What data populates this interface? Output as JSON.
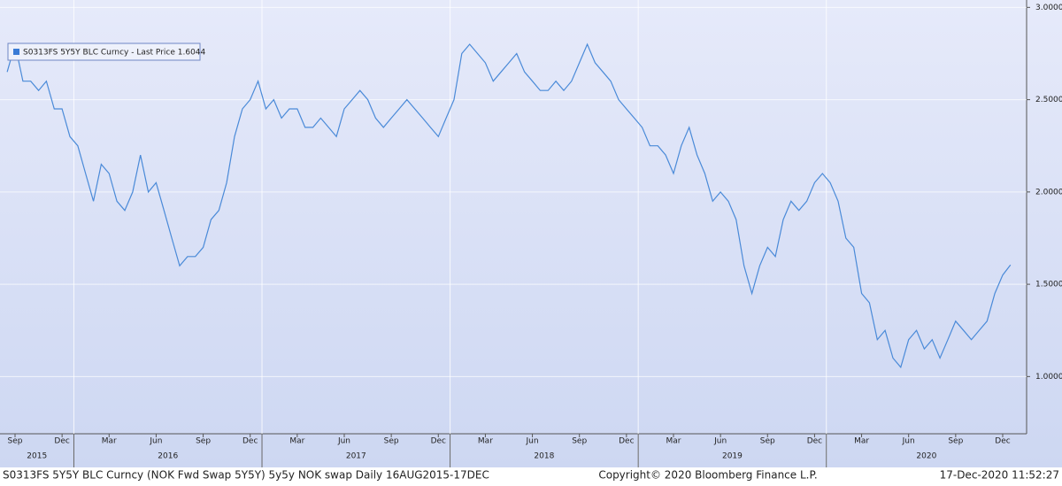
{
  "chart_data": {
    "type": "line",
    "legend": "S0313FS 5Y5Y BLC Curncy - Last Price 1.6044",
    "footer_left": "S0313FS 5Y5Y BLC Curncy (NOK Fwd Swap 5Y5Y) 5y5y NOK swap  Daily 16AUG2015-17DEC",
    "footer_center": "Copyright© 2020 Bloomberg Finance L.P.",
    "footer_right": "17-Dec-2020 11:52:27",
    "years": [
      "2015",
      "2016",
      "2017",
      "2018",
      "2019",
      "2020"
    ],
    "categories": [
      null,
      "Sep",
      null,
      null,
      null,
      null,
      null,
      "Dec",
      null,
      null,
      null,
      null,
      null,
      "Mar",
      null,
      null,
      null,
      null,
      null,
      "Jun",
      null,
      null,
      null,
      null,
      null,
      "Sep",
      null,
      null,
      null,
      null,
      null,
      "Dec",
      null,
      null,
      null,
      null,
      null,
      "Mar",
      null,
      null,
      null,
      null,
      null,
      "Jun",
      null,
      null,
      null,
      null,
      null,
      "Sep",
      null,
      null,
      null,
      null,
      null,
      "Dec",
      null,
      null,
      null,
      null,
      null,
      "Mar",
      null,
      null,
      null,
      null,
      null,
      "Jun",
      null,
      null,
      null,
      null,
      null,
      "Sep",
      null,
      null,
      null,
      null,
      null,
      "Dec",
      null,
      null,
      null,
      null,
      null,
      "Mar",
      null,
      null,
      null,
      null,
      null,
      "Jun",
      null,
      null,
      null,
      null,
      null,
      "Sep",
      null,
      null,
      null,
      null,
      null,
      "Dec",
      null,
      null,
      null,
      null,
      null,
      "Mar",
      null,
      null,
      null,
      null,
      null,
      "Jun",
      null,
      null,
      null,
      null,
      null,
      "Sep",
      null,
      null,
      null,
      null,
      null,
      "Dec",
      null
    ],
    "series": [
      {
        "name": "S0313FS 5Y5Y BLC Curncy",
        "color": "#4a8ad8",
        "values": [
          2.65,
          2.8,
          2.6,
          2.6,
          2.55,
          2.6,
          2.45,
          2.45,
          2.3,
          2.25,
          2.1,
          1.95,
          2.15,
          2.1,
          1.95,
          1.9,
          2.0,
          2.2,
          2.0,
          2.05,
          1.9,
          1.75,
          1.6,
          1.65,
          1.65,
          1.7,
          1.85,
          1.9,
          2.05,
          2.3,
          2.45,
          2.5,
          2.6,
          2.45,
          2.5,
          2.4,
          2.45,
          2.45,
          2.35,
          2.35,
          2.4,
          2.35,
          2.3,
          2.45,
          2.5,
          2.55,
          2.5,
          2.4,
          2.35,
          2.4,
          2.45,
          2.5,
          2.45,
          2.4,
          2.35,
          2.3,
          2.4,
          2.5,
          2.75,
          2.8,
          2.75,
          2.7,
          2.6,
          2.65,
          2.7,
          2.75,
          2.65,
          2.6,
          2.55,
          2.55,
          2.6,
          2.55,
          2.6,
          2.7,
          2.8,
          2.7,
          2.65,
          2.6,
          2.5,
          2.45,
          2.4,
          2.35,
          2.25,
          2.25,
          2.2,
          2.1,
          2.25,
          2.35,
          2.2,
          2.1,
          1.95,
          2.0,
          1.95,
          1.85,
          1.6,
          1.45,
          1.6,
          1.7,
          1.65,
          1.85,
          1.95,
          1.9,
          1.95,
          2.05,
          2.1,
          2.05,
          1.95,
          1.75,
          1.7,
          1.45,
          1.4,
          1.2,
          1.25,
          1.1,
          1.05,
          1.2,
          1.25,
          1.15,
          1.2,
          1.1,
          1.2,
          1.3,
          1.25,
          1.2,
          1.25,
          1.3,
          1.45,
          1.55,
          1.6044
        ]
      }
    ],
    "ylim": [
      0.69,
      3.04
    ],
    "yticks": [
      {
        "value": 1,
        "label": "1.0000"
      },
      {
        "value": 1.5,
        "label": "1.5000"
      },
      {
        "value": 2,
        "label": "2.0000"
      },
      {
        "value": 2.5,
        "label": "2.5000"
      },
      {
        "value": 3,
        "label": "3.0000"
      }
    ],
    "grid": true
  }
}
